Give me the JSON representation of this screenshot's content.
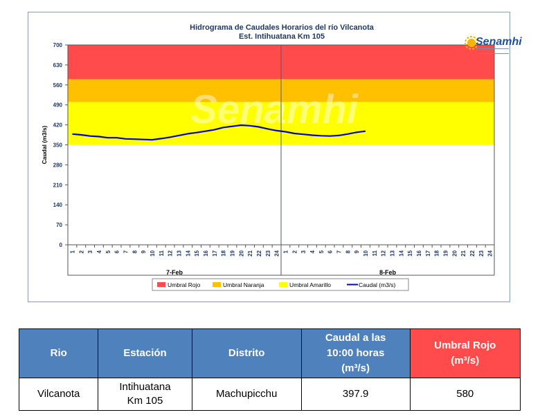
{
  "chart_data": {
    "type": "line",
    "title": "Hidrograma de Caudales Horarios del río Vilcanota",
    "subtitle": "Est. Intihuatana Km 105",
    "ylabel": "Caudal  (m3/s)",
    "ylim": [
      0,
      700
    ],
    "yticks": [
      0,
      70,
      140,
      210,
      280,
      350,
      420,
      490,
      560,
      630,
      700
    ],
    "x_tick_labels": [
      "1",
      "2",
      "3",
      "4",
      "5",
      "6",
      "7",
      "8",
      "9",
      "10",
      "11",
      "12",
      "13",
      "14",
      "15",
      "16",
      "17",
      "18",
      "19",
      "20",
      "21",
      "22",
      "23",
      "24",
      "1",
      "2",
      "3",
      "4",
      "5",
      "6",
      "7",
      "8",
      "9",
      "10",
      "11",
      "12",
      "13",
      "14",
      "15",
      "16",
      "17",
      "18",
      "19",
      "20",
      "21",
      "22",
      "23",
      "24"
    ],
    "day_labels": [
      "7-Feb",
      "8-Feb"
    ],
    "thresholds": [
      {
        "name": "Umbral Rojo",
        "from": 580,
        "to": 700,
        "color": "#ff4b4b"
      },
      {
        "name": "Umbral Naranja",
        "from": 500,
        "to": 580,
        "color": "#ffc000"
      },
      {
        "name": "Umbral Amarillo",
        "from": 350,
        "to": 500,
        "color": "#ffff00"
      }
    ],
    "series": [
      {
        "name": "Caudal (m3/s)",
        "color": "#0000cc",
        "x": [
          1,
          2,
          3,
          4,
          5,
          6,
          7,
          8,
          9,
          10,
          11,
          12,
          13,
          14,
          15,
          16,
          17,
          18,
          19,
          20,
          21,
          22,
          23,
          24,
          25,
          26,
          27,
          28,
          29,
          30,
          31,
          32,
          33,
          34
        ],
        "values": [
          388,
          385,
          381,
          379,
          375,
          375,
          371,
          370,
          369,
          368,
          372,
          377,
          383,
          389,
          393,
          398,
          403,
          411,
          415,
          419,
          417,
          413,
          406,
          400,
          396,
          390,
          387,
          384,
          382,
          381,
          383,
          388,
          394,
          397.9
        ]
      }
    ],
    "legend": [
      "Umbral Rojo",
      "Umbral Naranja",
      "Umbral Amarillo",
      "Caudal (m3/s)"
    ],
    "legend_position": "bottom",
    "grid": false
  },
  "logo": {
    "text": "Senamhi",
    "watermark": "Senamhi"
  },
  "table": {
    "headers": [
      "Rio",
      "Estación",
      "Distrito",
      "Caudal a las 10:00 horas (m³/s)",
      "Umbral Rojo (m³/s)"
    ],
    "header_lines": [
      [
        "Rio"
      ],
      [
        "Estación"
      ],
      [
        "Distrito"
      ],
      [
        "Caudal a las",
        "10:00 horas",
        "(m³/s)"
      ],
      [
        "Umbral Rojo",
        "(m³/s)"
      ]
    ],
    "row": [
      "Vilcanota",
      "Intihuatana Km 105",
      "Machupicchu",
      "397.9",
      "580"
    ],
    "row_lines": [
      [
        "Vilcanota"
      ],
      [
        "Intihuatana",
        "Km 105"
      ],
      [
        "Machupicchu"
      ],
      [
        "397.9"
      ],
      [
        "580"
      ]
    ]
  }
}
